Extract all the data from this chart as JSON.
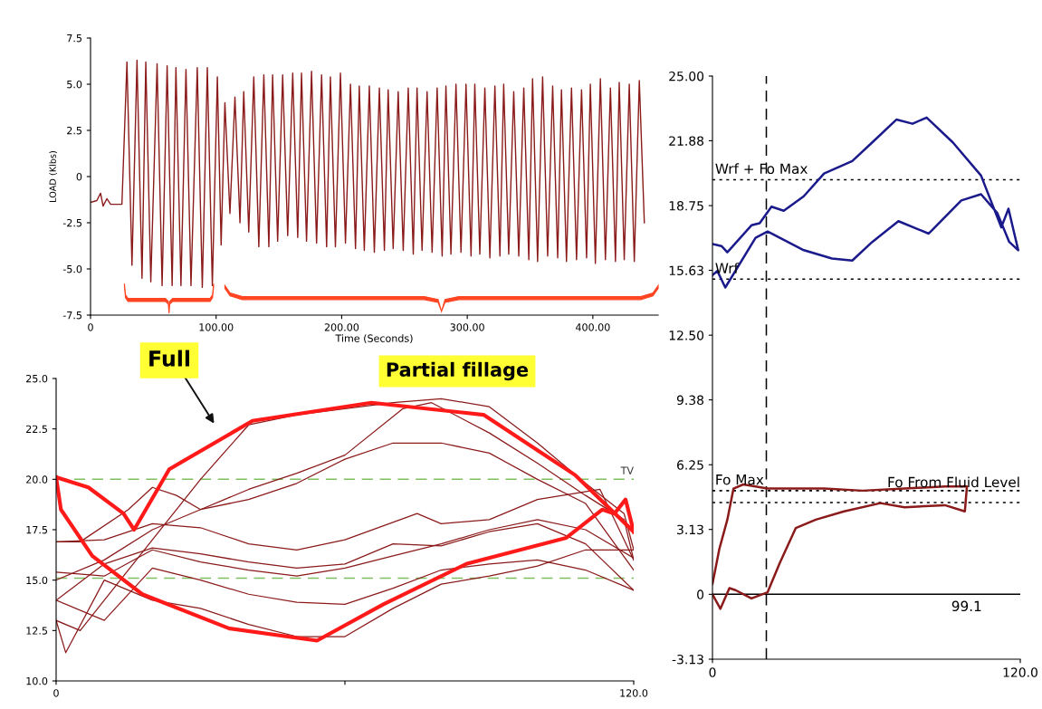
{
  "chart_data": [
    {
      "type": "line",
      "xlabel": "Time (Seconds)",
      "ylabel": "LOAD (Klbs)",
      "annotations": [
        "Full",
        "Partial fillage"
      ],
      "xlim": [
        0,
        452
      ],
      "xticks": [
        0,
        {
          "value": 100,
          "label": "100.00"
        },
        {
          "value": 200,
          "label": "200.00"
        },
        {
          "value": 300,
          "label": "300.00"
        },
        {
          "value": 400,
          "label": "400.00"
        }
      ],
      "ylim": [
        -7.5,
        7.5
      ],
      "yticks": [
        -7.5,
        {
          "value": -5,
          "label": "-5.0"
        },
        {
          "value": -2.5,
          "label": "-2.5"
        },
        0,
        {
          "value": 2.5,
          "label": "2.5"
        },
        {
          "value": 5,
          "label": "5.0"
        },
        7.5
      ],
      "grid": false,
      "legend": false,
      "marker": "none",
      "line_style": "solid",
      "series": [
        {
          "color": "#8b1a1a",
          "x": [
            0,
            5,
            8,
            10,
            13,
            16,
            25,
            29,
            33,
            37,
            41,
            44,
            48,
            53,
            57,
            61,
            65,
            68,
            72,
            76,
            80,
            85,
            89,
            93,
            97,
            101,
            104,
            107,
            111,
            115,
            119,
            122,
            126,
            130,
            134,
            138,
            142,
            145,
            149,
            153,
            157,
            161,
            165,
            168,
            172,
            176,
            180,
            184,
            188,
            191,
            195,
            199,
            203,
            207,
            211,
            214,
            218,
            222,
            226,
            230,
            234,
            237,
            241,
            245,
            249,
            253,
            257,
            260,
            264,
            268,
            272,
            276,
            280,
            283,
            287,
            291,
            295,
            299,
            303,
            306,
            310,
            314,
            318,
            322,
            326,
            329,
            333,
            337,
            341,
            345,
            349,
            352,
            356,
            360,
            364,
            368,
            372,
            375,
            379,
            383,
            387,
            391,
            395,
            398,
            402,
            406,
            410,
            414,
            418,
            421,
            425,
            429,
            433,
            437,
            441
          ],
          "values": [
            -1.4,
            -1.3,
            -0.9,
            -1.6,
            -1.2,
            -1.5,
            -1.5,
            6.2,
            -4.8,
            6.3,
            -5.5,
            6.2,
            -5.7,
            6.1,
            -5.9,
            6.0,
            -5.9,
            5.9,
            -5.9,
            5.8,
            -5.9,
            5.9,
            -6.0,
            5.9,
            -5.9,
            5.4,
            -3.7,
            4.0,
            -2.0,
            4.3,
            -2.5,
            4.6,
            -3.0,
            5.4,
            -3.8,
            5.5,
            -3.8,
            5.5,
            -3.5,
            5.5,
            -3.2,
            5.6,
            -3.3,
            5.6,
            -3.5,
            5.7,
            -3.6,
            5.5,
            -3.8,
            5.4,
            -3.8,
            5.6,
            -3.6,
            5.0,
            -3.9,
            4.9,
            -4.0,
            4.9,
            -4.1,
            4.8,
            -4.0,
            4.7,
            -3.9,
            4.6,
            -4.0,
            4.8,
            -4.2,
            4.8,
            -4.0,
            4.6,
            -4.1,
            4.8,
            -4.3,
            4.9,
            -4.2,
            5.0,
            -4.1,
            5.0,
            -4.3,
            5.0,
            -4.2,
            4.8,
            -4.4,
            4.9,
            -4.3,
            5.0,
            -4.2,
            4.6,
            -4.3,
            4.8,
            -4.5,
            5.3,
            -4.6,
            5.4,
            -4.3,
            4.9,
            -4.4,
            4.7,
            -4.6,
            4.8,
            -4.5,
            4.7,
            -4.4,
            5.0,
            -4.7,
            5.3,
            -4.5,
            4.8,
            -4.6,
            5.1,
            -4.5,
            5.0,
            -4.6,
            5.2,
            -2.5
          ]
        }
      ]
    },
    {
      "type": "line",
      "xlim": [
        0,
        120
      ],
      "xticks": [
        0,
        {
          "value": 60,
          "label": null
        },
        {
          "value": 120,
          "label": "120.0"
        }
      ],
      "ylim": [
        10,
        25
      ],
      "yticks": [
        {
          "value": 10,
          "label": "10.0"
        },
        {
          "value": 12.5,
          "label": "12.5"
        },
        {
          "value": 15,
          "label": "15.0"
        },
        {
          "value": 17.5,
          "label": "17.5"
        },
        {
          "value": 20,
          "label": "20.0"
        },
        {
          "value": 22.5,
          "label": "22.5"
        },
        {
          "value": 25,
          "label": "25.0"
        }
      ],
      "grid": false,
      "legend": false,
      "marker": "none",
      "line_style": "solid",
      "ref_lines": [
        {
          "axis": "y",
          "value": 20,
          "label": "TV",
          "color": "#7fbf5f",
          "line_style": "dashed"
        },
        {
          "axis": "y",
          "value": 15.1,
          "label": null,
          "color": "#7fbf5f",
          "line_style": "dashed"
        }
      ],
      "series": [
        {
          "color": "#8b1a1a",
          "x": [
            0,
            5,
            15,
            20,
            25,
            30,
            40,
            50,
            60,
            72,
            78,
            90,
            100,
            110,
            118,
            120
          ],
          "values": [
            16.9,
            16.9,
            18.5,
            19.6,
            19.2,
            18.5,
            19.5,
            20.3,
            21.2,
            23.5,
            23.8,
            22.3,
            20.8,
            19.2,
            18.0,
            16.0
          ]
        },
        {
          "color": "#8b1a1a",
          "x": [
            0,
            10,
            20,
            30,
            40,
            50,
            60,
            75,
            80,
            90,
            100,
            113,
            120
          ],
          "values": [
            16.9,
            17.0,
            17.8,
            17.6,
            16.8,
            16.5,
            17.0,
            18.3,
            17.8,
            18.0,
            19.0,
            19.5,
            16.0
          ]
        },
        {
          "color": "#8b1a1a",
          "x": [
            0,
            10,
            20,
            30,
            40,
            50,
            60,
            70,
            80,
            90,
            100,
            110,
            120
          ],
          "values": [
            15.0,
            16.0,
            17.5,
            18.5,
            19.0,
            19.8,
            21.0,
            21.8,
            21.8,
            21.3,
            20.0,
            18.8,
            15.5
          ]
        },
        {
          "color": "#8b1a1a",
          "x": [
            0,
            10,
            20,
            30,
            40,
            50,
            60,
            70,
            80,
            90,
            100,
            110,
            120
          ],
          "values": [
            15.4,
            15.2,
            16.5,
            15.9,
            15.5,
            15.2,
            15.6,
            16.2,
            16.8,
            17.5,
            18.0,
            17.5,
            16.1
          ]
        },
        {
          "color": "#8b1a1a",
          "x": [
            0,
            5,
            10,
            20,
            30,
            40,
            50,
            60,
            70,
            80,
            90,
            100,
            110,
            118,
            120
          ],
          "values": [
            13.0,
            12.5,
            14.0,
            17.0,
            20.0,
            22.7,
            23.2,
            23.5,
            23.8,
            24.0,
            23.6,
            21.8,
            19.8,
            18.3,
            16.5
          ]
        },
        {
          "color": "#8b1a1a",
          "x": [
            0,
            2,
            10,
            20,
            30,
            40,
            50,
            60,
            70,
            80,
            90,
            100,
            110,
            120
          ],
          "values": [
            13.0,
            11.4,
            15.0,
            14.0,
            13.6,
            12.8,
            12.2,
            12.2,
            13.6,
            14.8,
            15.2,
            15.7,
            16.5,
            16.5
          ]
        },
        {
          "color": "#8b1a1a",
          "x": [
            0,
            10,
            20,
            30,
            40,
            50,
            60,
            70,
            80,
            90,
            100,
            110,
            120
          ],
          "values": [
            14.0,
            15.8,
            16.6,
            16.3,
            15.9,
            15.6,
            15.8,
            16.8,
            16.7,
            17.4,
            17.8,
            16.8,
            14.5
          ]
        },
        {
          "color": "#8b1a1a",
          "x": [
            0,
            10,
            20,
            30,
            40,
            50,
            60,
            70,
            80,
            90,
            100,
            110,
            120
          ],
          "values": [
            14.0,
            13.0,
            15.6,
            15.0,
            14.3,
            13.9,
            13.8,
            14.6,
            15.5,
            15.8,
            16.0,
            15.5,
            14.5
          ]
        },
        {
          "color": "#ff1a1a",
          "x": [
            0,
            6.7,
            14,
            16.2,
            23.5,
            40.8,
            65.5,
            88.8,
            107.9,
            120
          ],
          "values": [
            20.1,
            19.6,
            18.3,
            17.5,
            20.5,
            22.9,
            23.8,
            23.2,
            20.2,
            17.4
          ]
        },
        {
          "color": "#ff1a1a",
          "x": [
            0,
            1,
            7.5,
            17.9,
            36,
            54.2,
            68,
            85.2,
            106,
            113.5,
            116,
            118.3,
            120
          ],
          "values": [
            20.1,
            18.5,
            16.2,
            14.3,
            12.6,
            12.0,
            13.8,
            15.8,
            17.1,
            18.5,
            18.3,
            19.0,
            17.4
          ]
        }
      ]
    },
    {
      "type": "line",
      "annotations": [
        {
          "text": "99.1",
          "x": 99.1,
          "y": 0
        }
      ],
      "xlim": [
        0,
        120
      ],
      "xticks": [
        0,
        {
          "value": 120,
          "label": "120.0"
        }
      ],
      "ylim": [
        -3.13,
        25
      ],
      "yticks": [
        -3.13,
        0,
        3.13,
        6.25,
        9.38,
        {
          "value": 12.5,
          "label": "12.50"
        },
        15.63,
        18.75,
        21.88,
        {
          "value": 25,
          "label": "25.00"
        }
      ],
      "grid": false,
      "legend": false,
      "marker": "none",
      "line_style": "solid",
      "ref_lines": [
        {
          "axis": "y",
          "value": 20.0,
          "label": "Wrf + Fo Max",
          "color": "#000000",
          "line_style": "dotted"
        },
        {
          "axis": "y",
          "value": 15.2,
          "label": "Wrf",
          "color": "#000000",
          "line_style": "dotted"
        },
        {
          "axis": "y",
          "value": 5.0,
          "label": "Fo Max",
          "color": "#000000",
          "line_style": "dotted"
        },
        {
          "axis": "y",
          "value": 4.43,
          "label": "Fo From Fluid Level",
          "color": "#000000",
          "line_style": "dotted"
        },
        {
          "axis": "y",
          "value": 0,
          "label": null,
          "color": "#000000",
          "line_style": "solid"
        },
        {
          "axis": "x",
          "value": 21.0,
          "label": null,
          "color": "#000000",
          "line_style": "dashed"
        }
      ],
      "series": [
        {
          "color": "#1a1a8c",
          "x": [
            0,
            3.5,
            5.8,
            15.2,
            18.4,
            23,
            27.8,
            35.6,
            43.5,
            54.5,
            62.3,
            71.7,
            78,
            83.5,
            93.7,
            104.7,
            112.6,
            115.4,
            117.3,
            119.2,
            115.7,
            111,
            104.7,
            97,
            84.3,
            72.5,
            62.3,
            54.5,
            46.6,
            35.6,
            21.5,
            16.8,
            5,
            1.9,
            0
          ],
          "values": [
            16.9,
            16.8,
            16.5,
            17.8,
            17.9,
            18.7,
            18.5,
            19.2,
            20.3,
            20.9,
            21.8,
            22.9,
            22.7,
            23.0,
            21.8,
            20.2,
            17.7,
            18.6,
            17.6,
            16.6,
            17.0,
            18.4,
            19.3,
            19.0,
            17.4,
            18.0,
            17.0,
            16.1,
            16.2,
            16.6,
            17.5,
            17.2,
            14.8,
            15.6,
            15.4
          ]
        },
        {
          "color": "#8b1a1a",
          "x": [
            0,
            2.7,
            5.8,
            8.2,
            12,
            21.5,
            43.5,
            58.5,
            74.9,
            90.6,
            99.2,
            98.4,
            90.6,
            74.9,
            65.5,
            51.3,
            40.3,
            32.5,
            26.2,
            21.5,
            15.2,
            9,
            6.6,
            3.1,
            0
          ],
          "values": [
            0.5,
            2.2,
            3.6,
            5.1,
            5.3,
            5.1,
            5.1,
            5.0,
            5.1,
            5.2,
            5.2,
            4.0,
            4.3,
            4.2,
            4.4,
            4.0,
            3.6,
            3.2,
            1.5,
            0.1,
            -0.2,
            0.2,
            0.3,
            -0.7,
            0
          ]
        }
      ]
    }
  ]
}
